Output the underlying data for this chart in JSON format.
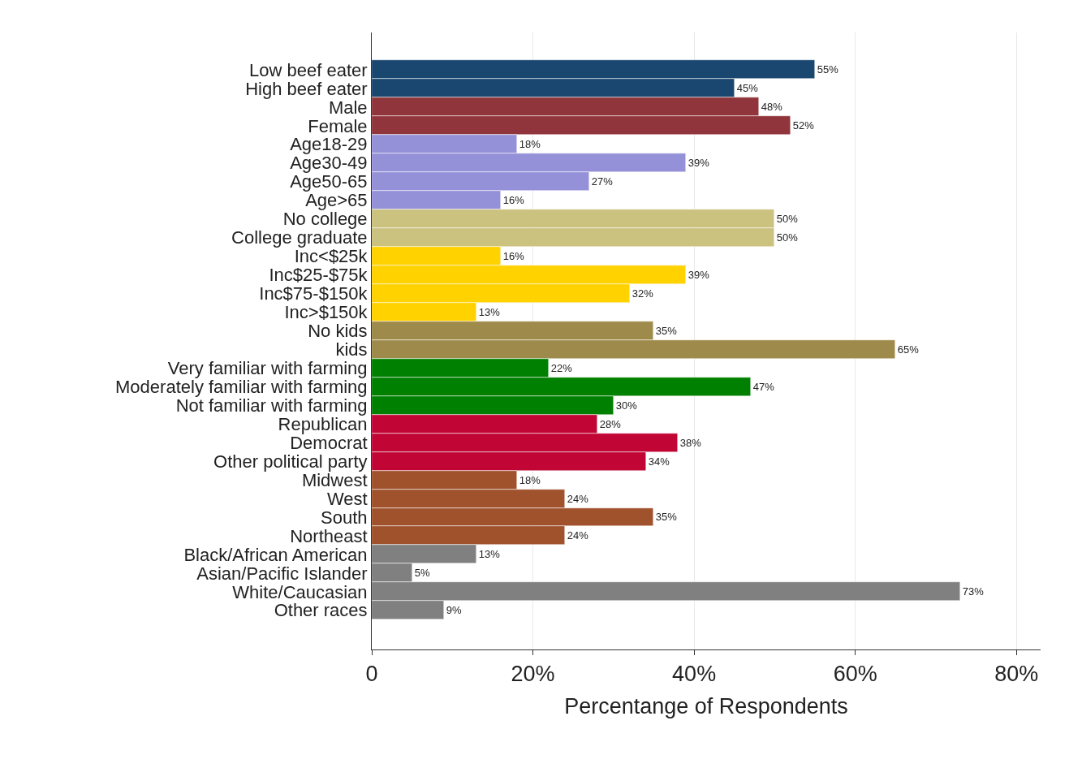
{
  "chart_data": {
    "type": "bar",
    "orientation": "horizontal",
    "xlabel": "Percentange of Respondents",
    "categories": [
      "Low beef eater",
      "High beef eater",
      "Male",
      "Female",
      "Age18-29",
      "Age30-49",
      "Age50-65",
      "Age>65",
      "No college",
      "College graduate",
      "Inc<$25k",
      "Inc$25-$75k",
      "Inc$75-$150k",
      "Inc>$150k",
      "No kids",
      "kids",
      "Very familiar with farming",
      "Moderately familiar with farming",
      "Not familiar with farming",
      "Republican",
      "Democrat",
      "Other political party",
      "Midwest",
      "West",
      "South",
      "Northeast",
      "Black/African American",
      "Asian/Pacific Islander",
      "White/Caucasian",
      "Other races"
    ],
    "values": [
      55,
      45,
      48,
      52,
      18,
      39,
      27,
      16,
      50,
      50,
      16,
      39,
      32,
      13,
      35,
      65,
      22,
      47,
      30,
      28,
      38,
      34,
      18,
      24,
      35,
      24,
      13,
      5,
      73,
      9
    ],
    "value_labels": [
      "55%",
      "45%",
      "48%",
      "52%",
      "18%",
      "39%",
      "27%",
      "16%",
      "50%",
      "50%",
      "16%",
      "39%",
      "32%",
      "13%",
      "35%",
      "65%",
      "22%",
      "47%",
      "30%",
      "28%",
      "38%",
      "34%",
      "18%",
      "24%",
      "35%",
      "24%",
      "13%",
      "5%",
      "73%",
      "9%"
    ],
    "colors": [
      "#1a476f",
      "#1a476f",
      "#90353b",
      "#90353b",
      "#9591d8",
      "#9591d8",
      "#9591d8",
      "#9591d8",
      "#cbc27f",
      "#cbc27f",
      "#ffd200",
      "#ffd200",
      "#ffd200",
      "#ffd200",
      "#9e8a4a",
      "#9e8a4a",
      "#008000",
      "#008000",
      "#008000",
      "#c10534",
      "#c10534",
      "#c10534",
      "#a0522d",
      "#a0522d",
      "#a0522d",
      "#a0522d",
      "#808080",
      "#808080",
      "#808080",
      "#808080"
    ],
    "xlim": [
      0,
      83
    ],
    "xticks": [
      0,
      {
        "value": 20,
        "label": "20%"
      },
      {
        "value": 40,
        "label": "40%"
      },
      {
        "value": 60,
        "label": "60%"
      },
      {
        "value": 80,
        "label": "80%"
      }
    ],
    "grid": "x",
    "legend": false
  }
}
